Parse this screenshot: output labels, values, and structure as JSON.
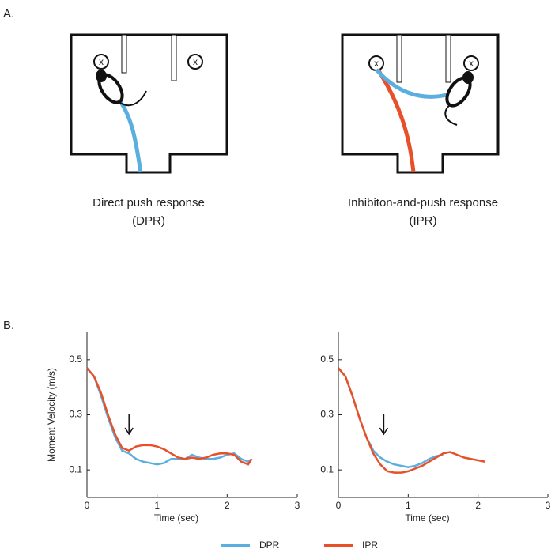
{
  "panel_a": {
    "label": "A.",
    "marker_label": "x",
    "captions": [
      {
        "title": "Direct push response",
        "abbr": "(DPR)"
      },
      {
        "title": "Inhibiton-and-push response",
        "abbr": "(IPR)"
      }
    ]
  },
  "panel_b": {
    "label": "B."
  },
  "legend": {
    "items": [
      {
        "name": "DPR",
        "color": "#5aaee0"
      },
      {
        "name": "IPR",
        "color": "#e8502a"
      }
    ]
  },
  "chart_data": [
    {
      "type": "line",
      "ylabel": "Moment Velocity (m/s)",
      "xlabel": "Time (sec)",
      "xlim": [
        0,
        3
      ],
      "xticks": [
        0,
        1,
        2,
        3
      ],
      "ylim": [
        0,
        0.6
      ],
      "yticks": [
        0.1,
        0.3,
        0.5
      ],
      "x": [
        0,
        0.1,
        0.2,
        0.3,
        0.4,
        0.5,
        0.6,
        0.7,
        0.8,
        0.9,
        1.0,
        1.1,
        1.2,
        1.3,
        1.4,
        1.5,
        1.6,
        1.7,
        1.8,
        1.9,
        2.0,
        2.1,
        2.2,
        2.3,
        2.35
      ],
      "series": [
        {
          "color": "#5aaee0",
          "values": [
            0.47,
            0.44,
            0.37,
            0.29,
            0.22,
            0.17,
            0.16,
            0.14,
            0.13,
            0.125,
            0.12,
            0.125,
            0.14,
            0.14,
            0.14,
            0.155,
            0.145,
            0.14,
            0.14,
            0.145,
            0.155,
            0.16,
            0.14,
            0.13,
            0.14
          ]
        },
        {
          "color": "#e8502a",
          "values": [
            0.47,
            0.44,
            0.38,
            0.3,
            0.23,
            0.18,
            0.17,
            0.185,
            0.19,
            0.19,
            0.185,
            0.175,
            0.16,
            0.145,
            0.14,
            0.145,
            0.14,
            0.145,
            0.155,
            0.16,
            0.16,
            0.155,
            0.13,
            0.12,
            0.14
          ]
        }
      ]
    },
    {
      "type": "line",
      "xlabel": "Time (sec)",
      "xlim": [
        0,
        3
      ],
      "xticks": [
        0,
        1,
        2,
        3
      ],
      "ylim": [
        0,
        0.6
      ],
      "yticks": [
        0.1,
        0.3,
        0.5
      ],
      "x": [
        0,
        0.1,
        0.2,
        0.3,
        0.4,
        0.5,
        0.6,
        0.7,
        0.8,
        0.9,
        1.0,
        1.1,
        1.2,
        1.3,
        1.4,
        1.5,
        1.6,
        1.7,
        1.8,
        1.9,
        2.0,
        2.1
      ],
      "series": [
        {
          "color": "#5aaee0",
          "values": [
            0.47,
            0.44,
            0.37,
            0.29,
            0.22,
            0.17,
            0.145,
            0.13,
            0.12,
            0.115,
            0.11,
            0.115,
            0.125,
            0.14,
            0.15,
            0.155,
            null,
            null,
            null,
            null,
            null,
            null
          ]
        },
        {
          "color": "#e8502a",
          "values": [
            0.47,
            0.44,
            0.37,
            0.29,
            0.22,
            0.16,
            0.12,
            0.095,
            0.09,
            0.09,
            0.095,
            0.105,
            0.115,
            0.13,
            0.145,
            0.16,
            0.165,
            0.155,
            0.145,
            0.14,
            0.135,
            0.13
          ]
        }
      ]
    }
  ]
}
